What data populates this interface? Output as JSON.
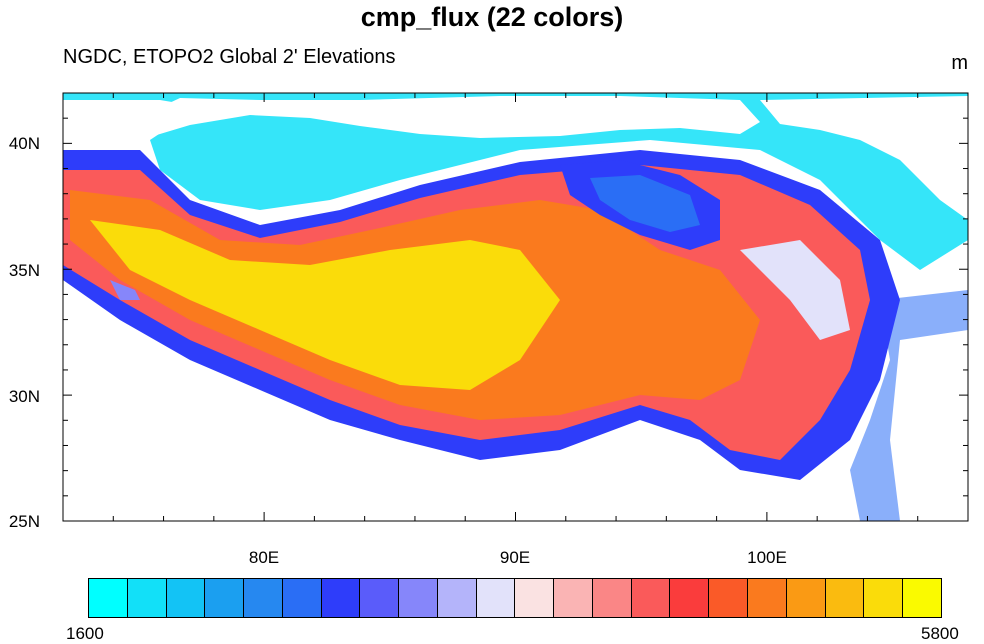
{
  "title": "cmp_flux (22 colors)",
  "subtitle": "NGDC, ETOPO2 Global 2' Elevations",
  "units": "m",
  "map": {
    "lon_range": [
      72,
      108
    ],
    "lat_range": [
      25,
      42
    ],
    "lat_labels": [
      "40N",
      "35N",
      "30N",
      "25N"
    ],
    "lat_label_values": [
      40,
      35,
      30,
      25
    ],
    "lon_labels": [
      "80E",
      "90E",
      "100E"
    ],
    "lon_label_values": [
      80,
      90,
      100
    ]
  },
  "colorbar": {
    "min_label": "1600",
    "max_label": "5800",
    "colors": [
      "#00ffff",
      "#12e0f8",
      "#13c3f5",
      "#1b9ff0",
      "#2688f0",
      "#2a6ef5",
      "#2e3dfa",
      "#5a5cfa",
      "#8686fa",
      "#b4b4fa",
      "#e2e2fa",
      "#fae2e2",
      "#fab4b4",
      "#fa8686",
      "#fa5a5a",
      "#fa3c3c",
      "#fa5a28",
      "#fa7a1e",
      "#fa9a14",
      "#fabb0f",
      "#fadc0a",
      "#fafa00"
    ]
  }
}
